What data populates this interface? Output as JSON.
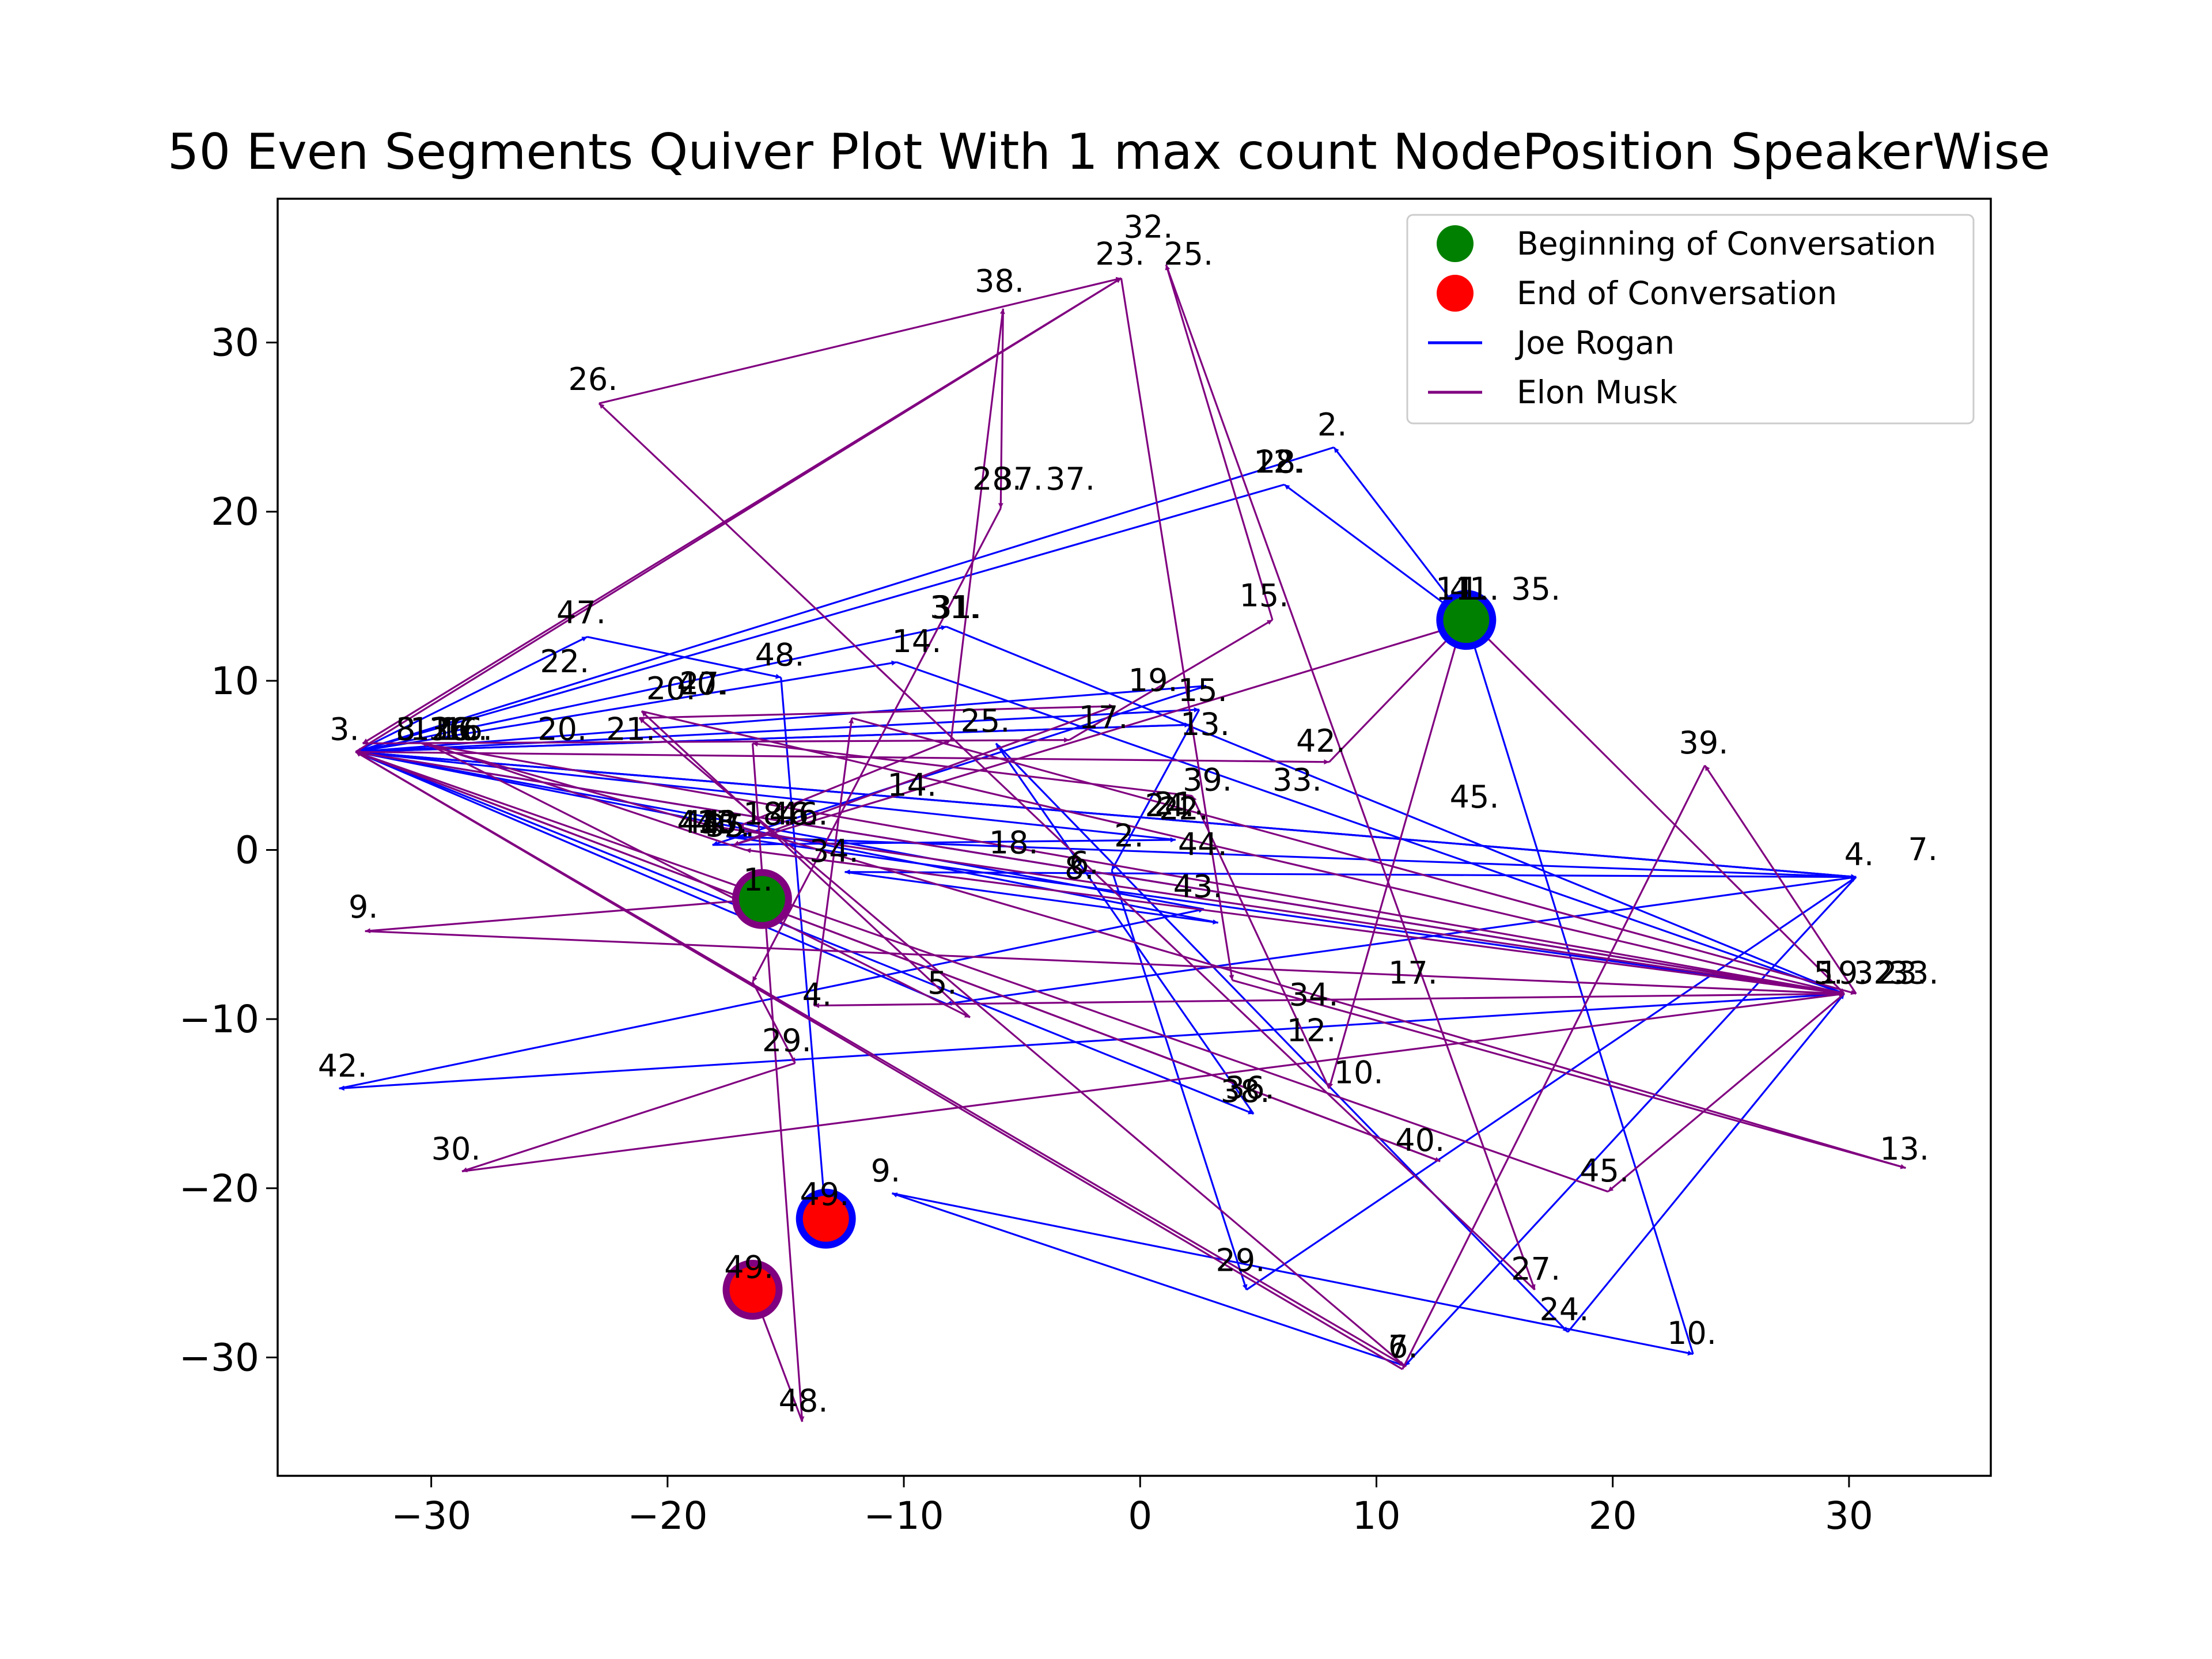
{
  "chart_data": {
    "type": "quiver",
    "title": "50 Even Segments Quiver Plot With 1 max count NodePosition SpeakerWise",
    "xlabel": "",
    "ylabel": "",
    "xlim": [
      -36.5,
      36
    ],
    "ylim": [
      -37,
      38.5
    ],
    "xticks": [
      -30,
      -20,
      -10,
      0,
      10,
      20,
      30
    ],
    "xtick_labels": [
      "−30",
      "−20",
      "−10",
      "0",
      "10",
      "20",
      "30"
    ],
    "yticks": [
      -30,
      -20,
      -10,
      0,
      10,
      20,
      30
    ],
    "ytick_labels": [
      "−30",
      "−20",
      "−10",
      "0",
      "10",
      "20",
      "30"
    ],
    "grid": false,
    "legend": {
      "placement": "top-right",
      "entries": [
        {
          "label": "Beginning of Conversation",
          "kind": "marker",
          "color": "#008000"
        },
        {
          "label": "End of Conversation",
          "kind": "marker",
          "color": "#ff0000"
        },
        {
          "label": "Joe Rogan",
          "kind": "line",
          "color": "#0000ff"
        },
        {
          "label": "Elon Musk",
          "kind": "line",
          "color": "#800080"
        }
      ]
    },
    "series": [
      {
        "name": "Joe Rogan",
        "color": "#0000ff",
        "path": [
          [
            13.8,
            13.6
          ],
          [
            8.2,
            23.8
          ],
          [
            -33.2,
            5.8
          ],
          [
            30.3,
            -1.6
          ],
          [
            -8.2,
            -9.1
          ],
          [
            -33.2,
            5.8
          ],
          [
            30.3,
            -1.6
          ],
          [
            11.2,
            -30.5
          ],
          [
            -10.5,
            -20.3
          ],
          [
            23.4,
            -29.8
          ],
          [
            13.8,
            13.6
          ],
          [
            6.1,
            21.6
          ],
          [
            -33.2,
            5.8
          ],
          [
            -10.3,
            11.1
          ],
          [
            29.8,
            -8.5
          ],
          [
            -33.2,
            5.8
          ],
          [
            2.8,
            9.7
          ],
          [
            -18.1,
            0.3
          ],
          [
            1.5,
            0.6
          ],
          [
            -33.2,
            5.8
          ],
          [
            2.1,
            7.4
          ],
          [
            -33.2,
            5.8
          ],
          [
            2.5,
            8.3
          ],
          [
            -1.2,
            -1.2
          ],
          [
            4.5,
            -26.0
          ],
          [
            30.3,
            -1.6
          ],
          [
            -33.2,
            5.8
          ],
          [
            -8.2,
            13.2
          ],
          [
            29.8,
            -8.5
          ],
          [
            -17.5,
            0.8
          ],
          [
            30.3,
            -1.6
          ],
          [
            -12.5,
            -1.3
          ],
          [
            3.3,
            -4.3
          ],
          [
            -33.2,
            5.8
          ],
          [
            4.8,
            -15.6
          ],
          [
            -6.1,
            6.3
          ],
          [
            18.1,
            -28.5
          ],
          [
            29.8,
            -8.5
          ],
          [
            -33.9,
            -14.1
          ],
          [
            2.7,
            -3.5
          ],
          [
            -33.2,
            5.8
          ],
          [
            -23.4,
            12.6
          ],
          [
            -15.2,
            10.2
          ],
          [
            -13.3,
            -21.8
          ]
        ],
        "labels": [
          {
            "text": "1.",
            "x": 13.5,
            "y": 14.8
          },
          {
            "text": "2.",
            "x": 7.5,
            "y": 24.5
          },
          {
            "text": "3.",
            "x": -34.3,
            "y": 6.5
          },
          {
            "text": "4.",
            "x": 29.8,
            "y": -0.9
          },
          {
            "text": "5.",
            "x": -9.0,
            "y": -8.5
          },
          {
            "text": "6.",
            "x": 10.5,
            "y": -30.0
          },
          {
            "text": "7.",
            "x": 32.5,
            "y": -0.6
          },
          {
            "text": "8.",
            "x": -31.5,
            "y": 6.5
          },
          {
            "text": "9.",
            "x": -11.4,
            "y": -19.6
          },
          {
            "text": "10.",
            "x": 22.3,
            "y": -29.2
          },
          {
            "text": "11.",
            "x": 12.5,
            "y": 14.8
          },
          {
            "text": "12.",
            "x": 4.8,
            "y": 22.3
          },
          {
            "text": "13.",
            "x": 1.7,
            "y": 6.8
          },
          {
            "text": "14.",
            "x": -10.5,
            "y": 11.7
          },
          {
            "text": "15.",
            "x": 1.6,
            "y": 8.8
          },
          {
            "text": "16.",
            "x": -29.5,
            "y": 6.5
          },
          {
            "text": "17.",
            "x": 10.5,
            "y": -7.9
          },
          {
            "text": "18.",
            "x": -6.4,
            "y": -0.2
          },
          {
            "text": "19.",
            "x": 28.7,
            "y": -7.9
          },
          {
            "text": "20.",
            "x": -25.5,
            "y": 6.5
          },
          {
            "text": "21.",
            "x": 0.6,
            "y": 2.1
          },
          {
            "text": "22.",
            "x": 0.8,
            "y": 1.8
          },
          {
            "text": "23.",
            "x": 31.2,
            "y": -7.9
          },
          {
            "text": "24.",
            "x": 16.9,
            "y": -27.8
          },
          {
            "text": "25.",
            "x": -7.6,
            "y": 7.0
          },
          {
            "text": "26.",
            "x": -30.0,
            "y": 6.5
          },
          {
            "text": "27.",
            "x": -19.5,
            "y": 9.2
          },
          {
            "text": "28.",
            "x": 4.9,
            "y": 22.3
          },
          {
            "text": "29.",
            "x": 3.2,
            "y": -24.9
          },
          {
            "text": "30.",
            "x": -18.7,
            "y": 1.0
          },
          {
            "text": "31.",
            "x": -8.8,
            "y": 13.7
          },
          {
            "text": "32.",
            "x": 30.2,
            "y": -7.9
          },
          {
            "text": "33.",
            "x": 31.7,
            "y": -7.9
          },
          {
            "text": "34.",
            "x": -14.0,
            "y": -0.7
          },
          {
            "text": "35.",
            "x": 15.7,
            "y": 14.8
          },
          {
            "text": "36.",
            "x": -30.1,
            "y": 6.5
          },
          {
            "text": "37.",
            "x": -6.2,
            "y": 21.3
          },
          {
            "text": "38.",
            "x": 3.4,
            "y": -14.9
          },
          {
            "text": "39.",
            "x": 1.8,
            "y": 3.5
          },
          {
            "text": "40.",
            "x": -19.6,
            "y": 9.2
          },
          {
            "text": "41.",
            "x": 13.1,
            "y": 14.8
          },
          {
            "text": "42.",
            "x": -34.8,
            "y": -13.4
          },
          {
            "text": "43.",
            "x": 1.4,
            "y": -2.8
          },
          {
            "text": "44.",
            "x": -19.4,
            "y": 1.0
          },
          {
            "text": "45.",
            "x": 13.1,
            "y": 2.5
          },
          {
            "text": "46.",
            "x": -15.7,
            "y": 1.5
          },
          {
            "text": "47.",
            "x": -24.7,
            "y": 13.4
          },
          {
            "text": "48.",
            "x": -16.3,
            "y": 10.9
          },
          {
            "text": "49.",
            "x": -14.4,
            "y": -21.0
          }
        ],
        "start": {
          "x": 13.8,
          "y": 13.6
        },
        "end": {
          "x": -13.3,
          "y": -21.8
        }
      },
      {
        "name": "Elon Musk",
        "color": "#800080",
        "path": [
          [
            -16.0,
            -2.9
          ],
          [
            -32.8,
            -4.8
          ],
          [
            29.8,
            -8.5
          ],
          [
            -18.1,
            1.4
          ],
          [
            -30.4,
            6.3
          ],
          [
            29.8,
            -8.5
          ],
          [
            19.8,
            -20.2
          ],
          [
            -33.2,
            5.8
          ],
          [
            11.2,
            -30.5
          ],
          [
            -21.2,
            7.8
          ],
          [
            -1.1,
            8.5
          ],
          [
            -17.2,
            0.3
          ],
          [
            14.0,
            13.5
          ],
          [
            29.8,
            -8.5
          ],
          [
            -16.7,
            0.0
          ],
          [
            -30.2,
            6.3
          ],
          [
            -7.2,
            -9.9
          ],
          [
            -21.1,
            8.2
          ],
          [
            29.8,
            -8.5
          ],
          [
            -33.2,
            5.8
          ],
          [
            12.7,
            -18.4
          ],
          [
            -33.2,
            5.8
          ],
          [
            -0.8,
            33.8
          ],
          [
            -32.9,
            6.3
          ],
          [
            -3.0,
            6.5
          ],
          [
            5.6,
            13.6
          ],
          [
            1.1,
            34.6
          ],
          [
            16.7,
            -26.0
          ],
          [
            -22.9,
            26.4
          ],
          [
            -0.8,
            33.8
          ],
          [
            3.9,
            -7.7
          ],
          [
            32.4,
            -18.8
          ],
          [
            -17.0,
            1.4
          ],
          [
            -8.0,
            6.5
          ],
          [
            -5.8,
            32.0
          ],
          [
            -5.9,
            20.2
          ],
          [
            -16.4,
            -7.8
          ],
          [
            -14.6,
            -12.6
          ],
          [
            -28.7,
            -19.0
          ],
          [
            29.8,
            -8.5
          ],
          [
            -13.8,
            -9.2
          ],
          [
            -12.2,
            7.8
          ],
          [
            30.3,
            -8.5
          ],
          [
            23.9,
            5.0
          ],
          [
            11.1,
            -30.7
          ],
          [
            -33.2,
            5.8
          ],
          [
            8.0,
            5.2
          ],
          [
            13.6,
            13.3
          ],
          [
            8.0,
            -14.1
          ],
          [
            2.2,
            3.2
          ],
          [
            -16.4,
            6.3
          ],
          [
            -14.3,
            -33.8
          ],
          [
            -16.4,
            -26.0
          ]
        ],
        "labels": [
          {
            "text": "1.",
            "x": -16.8,
            "y": -2.4
          },
          {
            "text": "2.",
            "x": -1.1,
            "y": 0.2
          },
          {
            "text": "3.",
            "x": -31.5,
            "y": 6.5
          },
          {
            "text": "4.",
            "x": -14.3,
            "y": -9.2
          },
          {
            "text": "5.",
            "x": 28.5,
            "y": -7.9
          },
          {
            "text": "6.",
            "x": -3.0,
            "y": -1.4
          },
          {
            "text": "7.",
            "x": 10.5,
            "y": -30.0
          },
          {
            "text": "8.",
            "x": -3.2,
            "y": -1.7
          },
          {
            "text": "9.",
            "x": -33.5,
            "y": -4.0
          },
          {
            "text": "10.",
            "x": 8.2,
            "y": -13.8
          },
          {
            "text": "11.",
            "x": -30.9,
            "y": 6.5
          },
          {
            "text": "12.",
            "x": 6.2,
            "y": -11.3
          },
          {
            "text": "13.",
            "x": 31.3,
            "y": -18.3
          },
          {
            "text": "14.",
            "x": -10.7,
            "y": 3.2
          },
          {
            "text": "15.",
            "x": 4.2,
            "y": 14.4
          },
          {
            "text": "16.",
            "x": -29.7,
            "y": 6.5
          },
          {
            "text": "17.",
            "x": -2.6,
            "y": 7.2
          },
          {
            "text": "18.",
            "x": -16.8,
            "y": 1.5
          },
          {
            "text": "19.",
            "x": -0.5,
            "y": 9.4
          },
          {
            "text": "20.",
            "x": -20.9,
            "y": 8.9
          },
          {
            "text": "21.",
            "x": -22.6,
            "y": 6.5
          },
          {
            "text": "22.",
            "x": -25.4,
            "y": 10.5
          },
          {
            "text": "23.",
            "x": -1.9,
            "y": 34.6
          },
          {
            "text": "24.",
            "x": 0.2,
            "y": 2.0
          },
          {
            "text": "25.",
            "x": 1.0,
            "y": 34.6
          },
          {
            "text": "26.",
            "x": -24.2,
            "y": 27.2
          },
          {
            "text": "27.",
            "x": 15.7,
            "y": -25.4
          },
          {
            "text": "28.",
            "x": -7.1,
            "y": 21.3
          },
          {
            "text": "29.",
            "x": -16.0,
            "y": -11.9
          },
          {
            "text": "30.",
            "x": -30.0,
            "y": -18.3
          },
          {
            "text": "31.",
            "x": -8.9,
            "y": 13.7
          },
          {
            "text": "32.",
            "x": -0.7,
            "y": 36.2
          },
          {
            "text": "33.",
            "x": 5.6,
            "y": 3.5
          },
          {
            "text": "34.",
            "x": 6.3,
            "y": -9.2
          },
          {
            "text": "35.",
            "x": -18.4,
            "y": 0.8
          },
          {
            "text": "36.",
            "x": 3.6,
            "y": -14.7
          },
          {
            "text": "37.",
            "x": -4.0,
            "y": 21.3
          },
          {
            "text": "38.",
            "x": -7.0,
            "y": 33.0
          },
          {
            "text": "39.",
            "x": 22.8,
            "y": 5.7
          },
          {
            "text": "40.",
            "x": 10.8,
            "y": -17.8
          },
          {
            "text": "41.",
            "x": -19.6,
            "y": 1.0
          },
          {
            "text": "42.",
            "x": 6.6,
            "y": 5.8
          },
          {
            "text": "43.",
            "x": -18.8,
            "y": 1.0
          },
          {
            "text": "44.",
            "x": 1.6,
            "y": -0.3
          },
          {
            "text": "45.",
            "x": 18.6,
            "y": -19.6
          },
          {
            "text": "46.",
            "x": -15.3,
            "y": 1.5
          },
          {
            "text": "47.",
            "x": -18.6,
            "y": 0.8
          },
          {
            "text": "48.",
            "x": -15.3,
            "y": -33.2
          },
          {
            "text": "49.",
            "x": -17.6,
            "y": -25.3
          }
        ],
        "start": {
          "x": -16.0,
          "y": -2.9
        },
        "end": {
          "x": -16.4,
          "y": -26.0
        }
      }
    ]
  }
}
